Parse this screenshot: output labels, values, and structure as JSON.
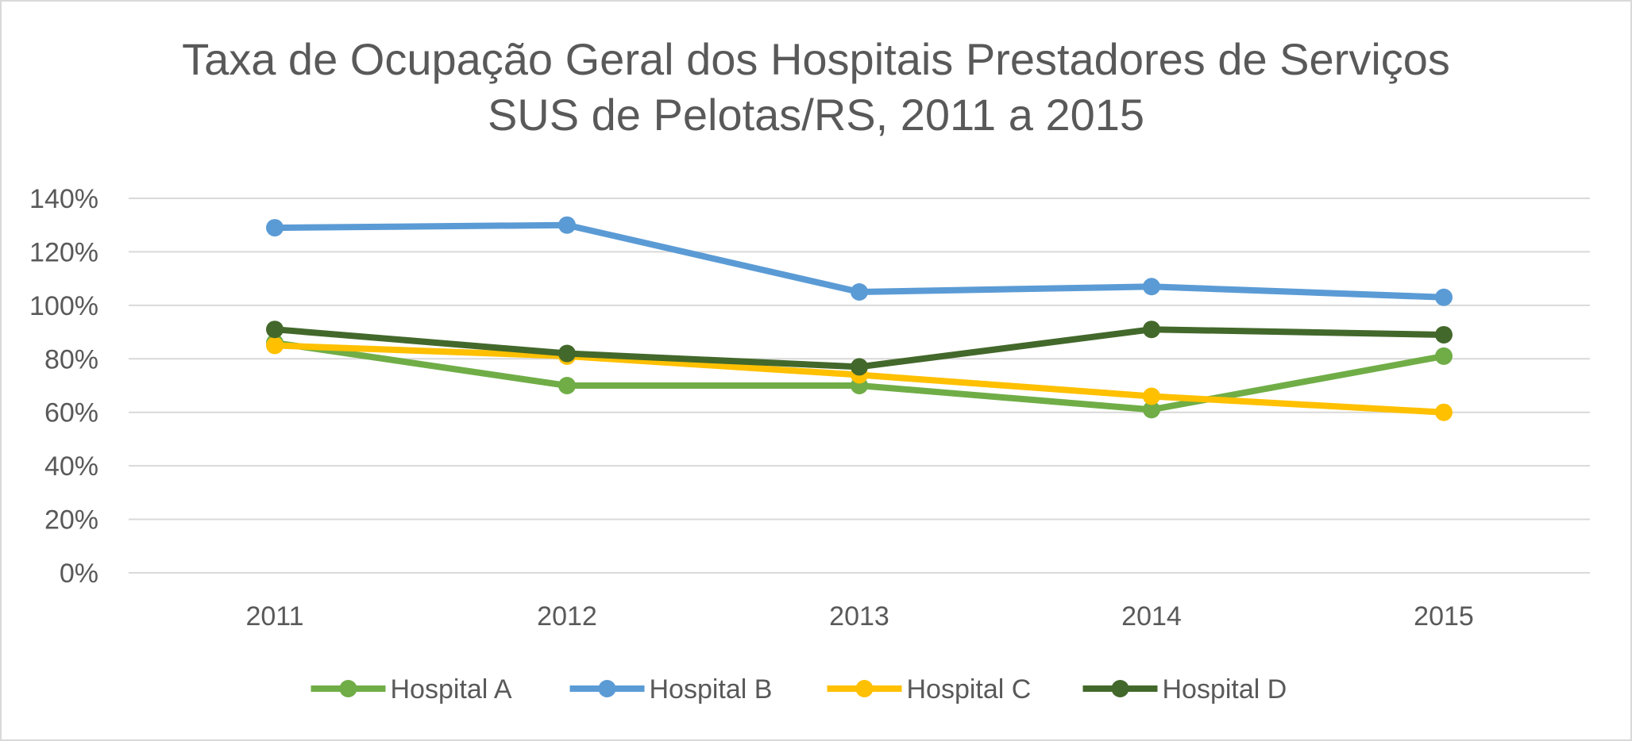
{
  "chart_data": {
    "type": "line",
    "title_lines": [
      "Taxa de Ocupação Geral dos Hospitais Prestadores de Serviços",
      "SUS de Pelotas/RS, 2011 a 2015"
    ],
    "categories": [
      "2011",
      "2012",
      "2013",
      "2014",
      "2015"
    ],
    "y_ticks": [
      "0%",
      "20%",
      "40%",
      "60%",
      "80%",
      "100%",
      "120%",
      "140%"
    ],
    "ylim": [
      0,
      140
    ],
    "y_unit": "percent",
    "grid": "horizontal",
    "legend_position": "bottom",
    "series": [
      {
        "name": "Hospital A",
        "color": "#70ad47",
        "values": [
          86,
          70,
          70,
          61,
          81
        ]
      },
      {
        "name": "Hospital B",
        "color": "#5b9bd5",
        "values": [
          129,
          130,
          105,
          107,
          103
        ]
      },
      {
        "name": "Hospital C",
        "color": "#ffc000",
        "values": [
          85,
          81,
          74,
          66,
          60
        ]
      },
      {
        "name": "Hospital D",
        "color": "#43682b",
        "values": [
          91,
          82,
          77,
          91,
          89
        ]
      }
    ]
  }
}
